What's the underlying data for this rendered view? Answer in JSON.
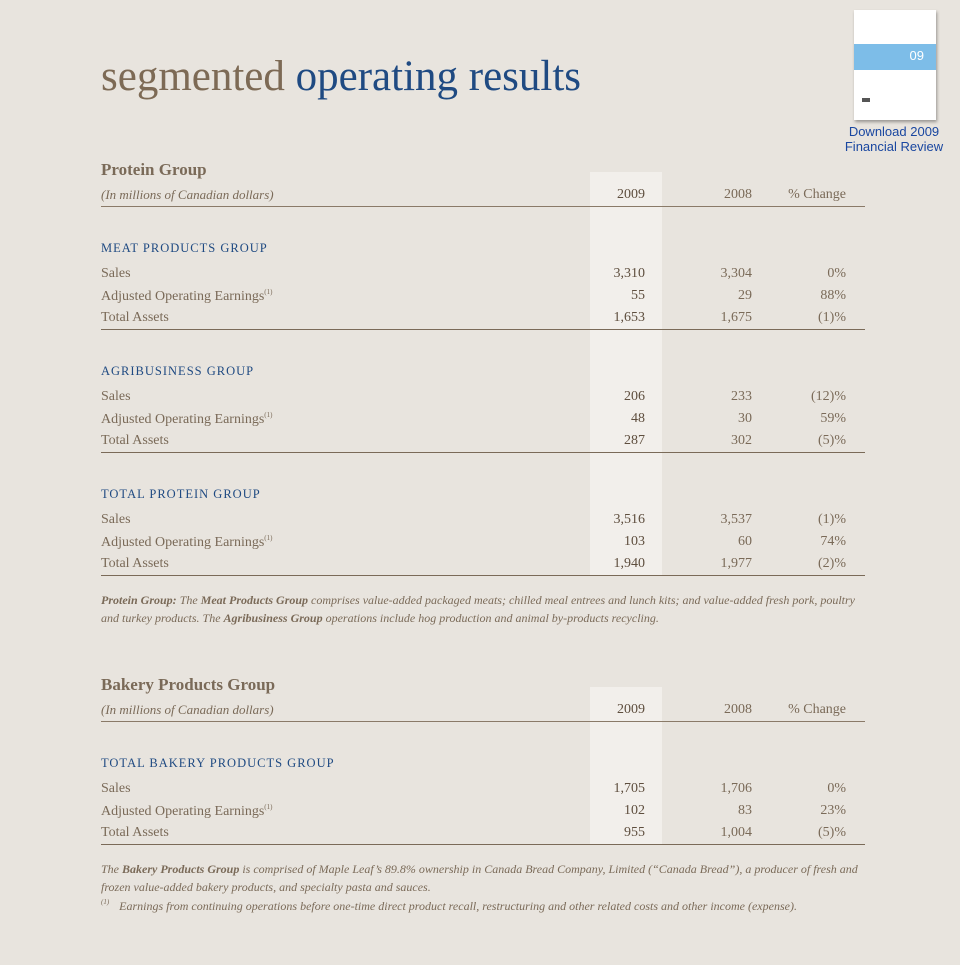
{
  "title": {
    "part1": "segmented",
    "part2": "operating results"
  },
  "cover": {
    "label": "09"
  },
  "download": "Download 2009 Financial Review",
  "groups": [
    {
      "heading": "Protein Group",
      "units": "(In millions of Canadian dollars)",
      "columns": [
        "2009",
        "2008",
        "% Change"
      ],
      "sections": [
        {
          "name": "MEAT PRODUCTS GROUP",
          "rows": [
            {
              "label": "Sales",
              "values": [
                "3,310",
                "3,304",
                "0%"
              ]
            },
            {
              "label": "Adjusted Operating Earnings",
              "ref": "(1)",
              "values": [
                "55",
                "29",
                "88%"
              ]
            },
            {
              "label": "Total Assets",
              "values": [
                "1,653",
                "1,675",
                "(1)%"
              ]
            }
          ]
        },
        {
          "name": "AGRIBUSINESS GROUP",
          "rows": [
            {
              "label": "Sales",
              "values": [
                "206",
                "233",
                "(12)%"
              ]
            },
            {
              "label": "Adjusted Operating Earnings",
              "ref": "(1)",
              "values": [
                "48",
                "30",
                "59%"
              ]
            },
            {
              "label": "Total Assets",
              "values": [
                "287",
                "302",
                "(5)%"
              ]
            }
          ]
        },
        {
          "name": "TOTAL PROTEIN GROUP",
          "rows": [
            {
              "label": "Sales",
              "values": [
                "3,516",
                "3,537",
                "(1)%"
              ]
            },
            {
              "label": "Adjusted Operating Earnings",
              "ref": "(1)",
              "values": [
                "103",
                "60",
                "74%"
              ]
            },
            {
              "label": "Total Assets",
              "values": [
                "1,940",
                "1,977",
                "(2)%"
              ]
            }
          ]
        }
      ],
      "note": [
        {
          "text": "Protein Group:",
          "bold": true
        },
        {
          "text": " The ",
          "bold": false
        },
        {
          "text": "Meat Products Group",
          "bold": true
        },
        {
          "text": " comprises value-added packaged meats; chilled meal entrees and lunch kits; and value-added fresh pork, poultry and turkey products. The ",
          "bold": false
        },
        {
          "text": "Agribusiness Group",
          "bold": true
        },
        {
          "text": " operations include hog production and animal by-products recycling.",
          "bold": false
        }
      ]
    },
    {
      "heading": "Bakery Products Group",
      "units": "(In millions of Canadian dollars)",
      "columns": [
        "2009",
        "2008",
        "% Change"
      ],
      "sections": [
        {
          "name": "TOTAL BAKERY PRODUCTS GROUP",
          "rows": [
            {
              "label": "Sales",
              "values": [
                "1,705",
                "1,706",
                "0%"
              ]
            },
            {
              "label": "Adjusted Operating Earnings",
              "ref": "(1)",
              "values": [
                "102",
                "83",
                "23%"
              ]
            },
            {
              "label": "Total Assets",
              "values": [
                "955",
                "1,004",
                "(5)%"
              ]
            }
          ]
        }
      ],
      "note": [
        {
          "text": "The ",
          "bold": false
        },
        {
          "text": "Bakery Products Group",
          "bold": true
        },
        {
          "text": " is comprised of Maple Leaf’s 89.8% ownership in Canada Bread Company, Limited (“Canada Bread”), a producer of fresh and frozen value-added bakery products, and specialty pasta and sauces.",
          "bold": false
        }
      ]
    }
  ],
  "footnote": {
    "mark": "(1)",
    "text": "Earnings from continuing operations before one-time direct product recall, restructuring and other related costs and other income (expense)."
  }
}
